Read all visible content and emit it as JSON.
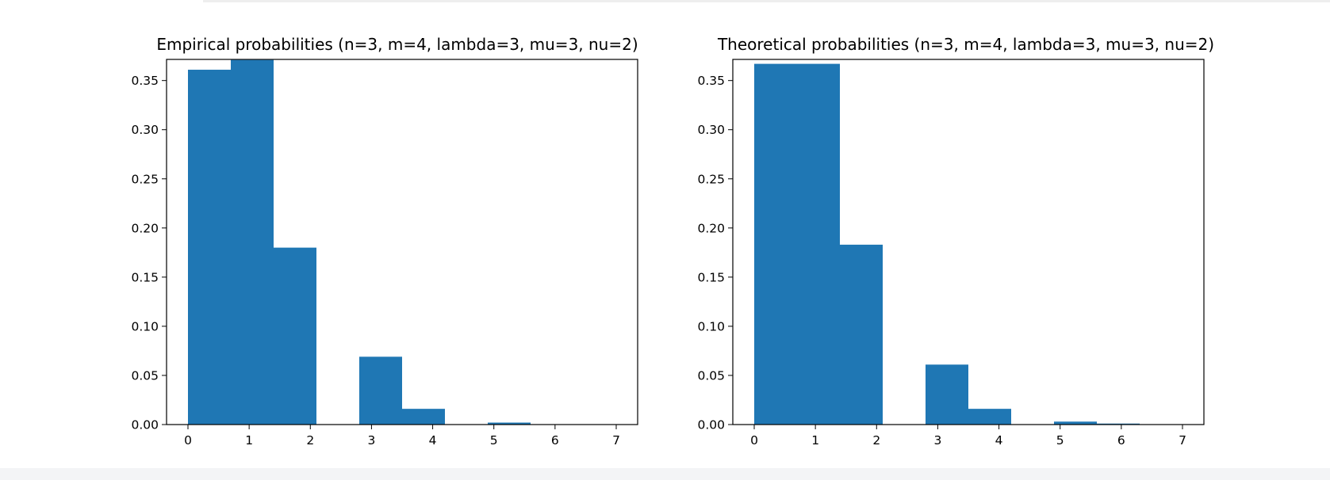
{
  "chart_data": [
    {
      "type": "bar",
      "title": "Empirical probabilities (n=3, m=4, lambda=3, mu=3, nu=2)",
      "xlabel": "",
      "ylabel": "",
      "xlim": [
        -0.35,
        7.35
      ],
      "ylim": [
        0,
        0.3715
      ],
      "xticks": [
        0,
        1,
        2,
        3,
        4,
        5,
        6,
        7
      ],
      "yticks": [
        0.0,
        0.05,
        0.1,
        0.15,
        0.2,
        0.25,
        0.3,
        0.35
      ],
      "ytick_labels": [
        "0.00",
        "0.05",
        "0.10",
        "0.15",
        "0.20",
        "0.25",
        "0.30",
        "0.35"
      ],
      "grid": false,
      "bar_color": "#1f77b4",
      "bins": [
        {
          "x0": 0.0,
          "x1": 0.7,
          "value": 0.361
        },
        {
          "x0": 0.7,
          "x1": 1.4,
          "value": 0.371
        },
        {
          "x0": 1.4,
          "x1": 2.1,
          "value": 0.18
        },
        {
          "x0": 2.1,
          "x1": 2.8,
          "value": 0.0
        },
        {
          "x0": 2.8,
          "x1": 3.5,
          "value": 0.069
        },
        {
          "x0": 3.5,
          "x1": 4.2,
          "value": 0.016
        },
        {
          "x0": 4.2,
          "x1": 4.9,
          "value": 0.0
        },
        {
          "x0": 4.9,
          "x1": 5.6,
          "value": 0.002
        },
        {
          "x0": 5.6,
          "x1": 6.3,
          "value": 0.0
        },
        {
          "x0": 6.3,
          "x1": 7.0,
          "value": 0.0
        }
      ]
    },
    {
      "type": "bar",
      "title": "Theoretical probabilities (n=3, m=4, lambda=3, mu=3, nu=2)",
      "xlabel": "",
      "ylabel": "",
      "xlim": [
        -0.35,
        7.35
      ],
      "ylim": [
        0,
        0.3715
      ],
      "xticks": [
        0,
        1,
        2,
        3,
        4,
        5,
        6,
        7
      ],
      "yticks": [
        0.0,
        0.05,
        0.1,
        0.15,
        0.2,
        0.25,
        0.3,
        0.35
      ],
      "ytick_labels": [
        "0.00",
        "0.05",
        "0.10",
        "0.15",
        "0.20",
        "0.25",
        "0.30",
        "0.35"
      ],
      "grid": false,
      "bar_color": "#1f77b4",
      "bins": [
        {
          "x0": 0.0,
          "x1": 0.7,
          "value": 0.367
        },
        {
          "x0": 0.7,
          "x1": 1.4,
          "value": 0.367
        },
        {
          "x0": 1.4,
          "x1": 2.1,
          "value": 0.183
        },
        {
          "x0": 2.1,
          "x1": 2.8,
          "value": 0.0
        },
        {
          "x0": 2.8,
          "x1": 3.5,
          "value": 0.061
        },
        {
          "x0": 3.5,
          "x1": 4.2,
          "value": 0.016
        },
        {
          "x0": 4.2,
          "x1": 4.9,
          "value": 0.0
        },
        {
          "x0": 4.9,
          "x1": 5.6,
          "value": 0.003
        },
        {
          "x0": 5.6,
          "x1": 6.3,
          "value": 0.001
        },
        {
          "x0": 6.3,
          "x1": 7.0,
          "value": 0.0
        }
      ]
    }
  ]
}
